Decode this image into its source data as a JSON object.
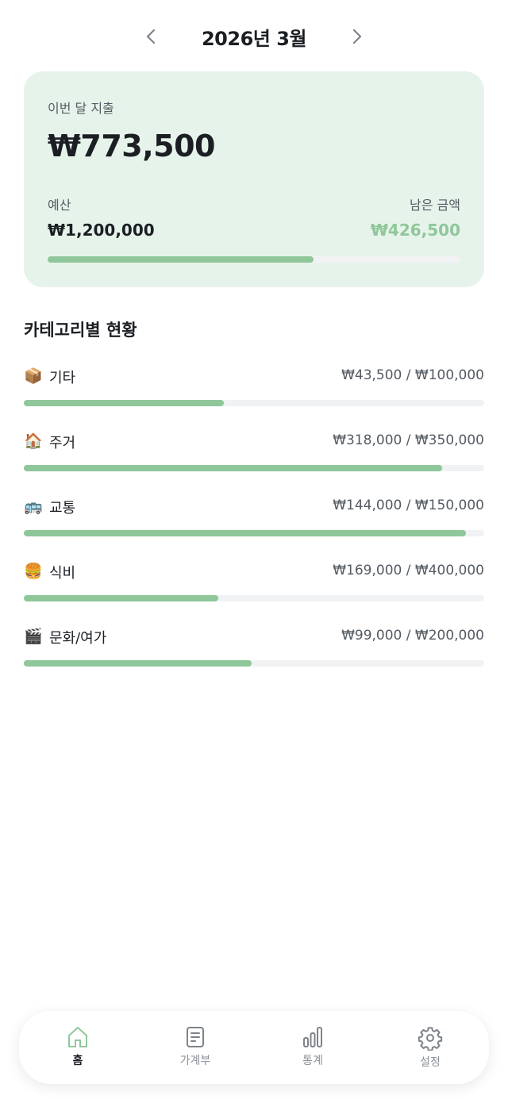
{
  "header": {
    "title": "2026년 3월",
    "prev_icon": "chevron-left-icon",
    "next_icon": "chevron-right-icon"
  },
  "summary": {
    "spent_label": "이번 달 지출",
    "spent": "₩773,500",
    "budget_label": "예산",
    "budget": "₩1,200,000",
    "remaining_label": "남은 금액",
    "remaining": "₩426,500",
    "progress": 0.645
  },
  "categories_title": "카테고리별 현황",
  "categories": [
    {
      "emoji": "📦",
      "name": "기타",
      "amount": "₩43,500 / ₩100,000",
      "progress": 0.435
    },
    {
      "emoji": "🏠",
      "name": "주거",
      "amount": "₩318,000 / ₩350,000",
      "progress": 0.909
    },
    {
      "emoji": "🚌",
      "name": "교통",
      "amount": "₩144,000 / ₩150,000",
      "progress": 0.96
    },
    {
      "emoji": "🍔",
      "name": "식비",
      "amount": "₩169,000 / ₩400,000",
      "progress": 0.4225
    },
    {
      "emoji": "🎬",
      "name": "문화/여가",
      "amount": "₩99,000 / ₩200,000",
      "progress": 0.495
    }
  ],
  "tabs": [
    {
      "label": "홈",
      "icon": "home-icon",
      "active": true
    },
    {
      "label": "가계부",
      "icon": "document-icon"
    },
    {
      "label": "통계",
      "icon": "bar-chart-icon"
    },
    {
      "label": "설정",
      "icon": "gear-icon"
    }
  ],
  "colors": {
    "accent": "#8fc79a",
    "card_bg": "#e6f3ea",
    "track": "#f1f2f3"
  }
}
